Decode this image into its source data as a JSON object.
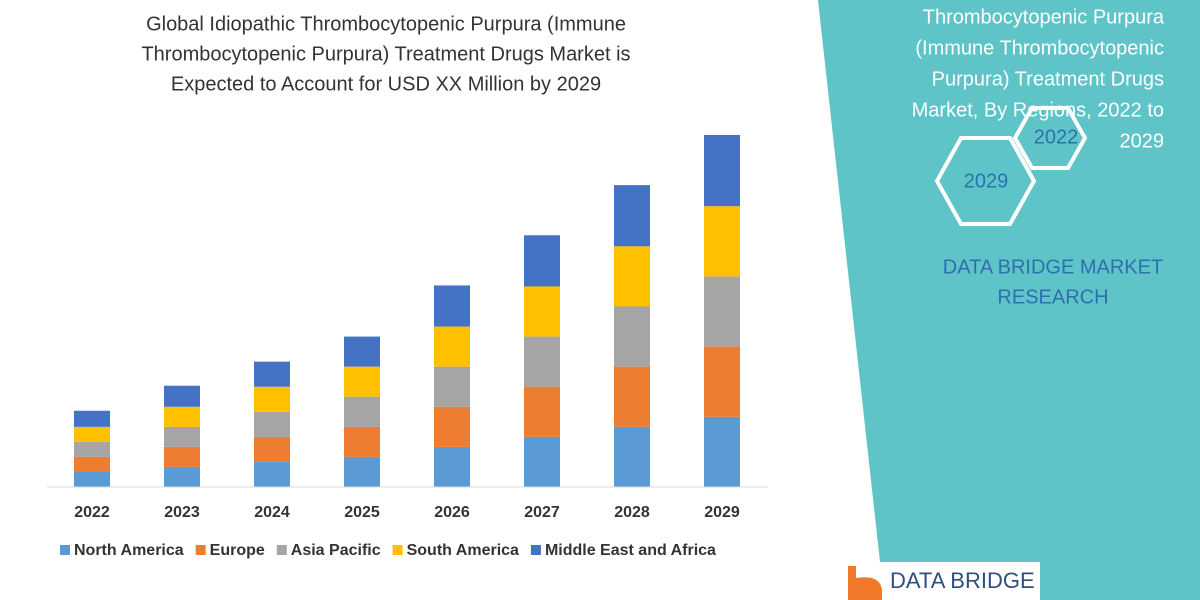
{
  "chart_data": {
    "type": "stacked_bar",
    "title_lines": [
      "Global Idiopathic Thrombocytopenic Purpura (Immune",
      "Thrombocytopenic Purpura) Treatment Drugs Market is",
      "Expected to Account for USD XX Million by 2029"
    ],
    "categories": [
      "2022",
      "2023",
      "2024",
      "2025",
      "2026",
      "2027",
      "2028",
      "2029"
    ],
    "series": [
      {
        "name": "North America",
        "color": "#5b9bd5",
        "values": [
          15,
          20,
          25,
          30,
          40,
          50,
          60,
          70
        ]
      },
      {
        "name": "Europe",
        "color": "#ed7d31",
        "values": [
          15,
          20,
          25,
          30,
          40,
          50,
          60,
          70
        ]
      },
      {
        "name": "Asia Pacific",
        "color": "#a5a5a5",
        "values": [
          15,
          20,
          25,
          30,
          40,
          50,
          60,
          70
        ]
      },
      {
        "name": "South America",
        "color": "#ffc000",
        "values": [
          15,
          20,
          25,
          30,
          40,
          50,
          60,
          70
        ]
      },
      {
        "name": "Middle East and Africa",
        "color": "#4472c4",
        "values": [
          16,
          21,
          25,
          30,
          41,
          51,
          61,
          71
        ]
      }
    ],
    "legend": "bottom"
  },
  "side_panel": {
    "heading_lines": [
      "Thrombocytopenic Purpura",
      "(Immune Thrombocytopenic",
      "Purpura) Treatment Drugs",
      "Market, By Regions, 2022 to",
      "2029"
    ],
    "hexagon_start": "2022",
    "hexagon_end": "2029",
    "brand_lines": [
      "DATA BRIDGE MARKET",
      "RESEARCH"
    ],
    "logo_text": "DATA BRIDGE"
  }
}
